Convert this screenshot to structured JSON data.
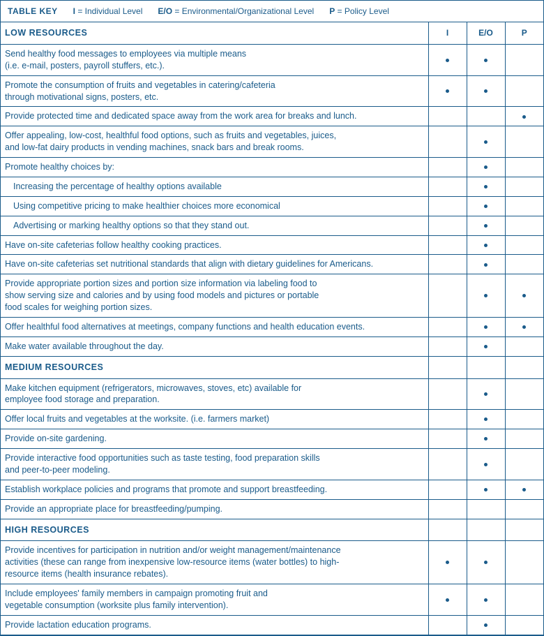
{
  "colors": {
    "text": "#1a5b8a",
    "border": "#1a5b8a",
    "bg": "#ffffff"
  },
  "tableKey": {
    "label": "TABLE KEY",
    "i": {
      "abbr": "I",
      "text": "= Individual Level"
    },
    "eo": {
      "abbr": "E/O",
      "text": "= Environmental/Organizational Level"
    },
    "p": {
      "abbr": "P",
      "text": "= Policy Level"
    }
  },
  "columns": {
    "i": "I",
    "eo": "E/O",
    "p": "P"
  },
  "sections": {
    "low": "LOW RESOURCES",
    "medium": "MEDIUM RESOURCES",
    "high": "HIGH RESOURCES"
  },
  "rows": {
    "low": [
      {
        "text": "Send healthy food messages to employees via multiple means\n(i.e. e-mail, posters, payroll stuffers, etc.).",
        "i": true,
        "eo": true,
        "p": false
      },
      {
        "text": "Promote the consumption of fruits and vegetables in catering/cafeteria\nthrough motivational signs, posters, etc.",
        "i": true,
        "eo": true,
        "p": false
      },
      {
        "text": "Provide protected time and dedicated space away from the work area for breaks and lunch.",
        "i": false,
        "eo": false,
        "p": true
      },
      {
        "text": "Offer appealing, low-cost, healthful food options, such as fruits and vegetables, juices,\nand low-fat dairy products in vending machines, snack bars and break rooms.",
        "i": false,
        "eo": true,
        "p": false
      },
      {
        "text": "Promote healthy choices by:",
        "i": false,
        "eo": true,
        "p": false
      },
      {
        "text": "Increasing the percentage of healthy options available",
        "i": false,
        "eo": true,
        "p": false,
        "indent": true
      },
      {
        "text": "Using competitive pricing to make healthier choices more economical",
        "i": false,
        "eo": true,
        "p": false,
        "indent": true
      },
      {
        "text": "Advertising or marking healthy options so that they stand out.",
        "i": false,
        "eo": true,
        "p": false,
        "indent": true
      },
      {
        "text": "Have on-site cafeterias follow healthy cooking practices.",
        "i": false,
        "eo": true,
        "p": false
      },
      {
        "text": "Have on-site cafeterias set nutritional standards that align with dietary guidelines for Americans.",
        "i": false,
        "eo": true,
        "p": false
      },
      {
        "text": "Provide appropriate portion sizes and portion size information via labeling food to\nshow serving size and calories and by using food models and pictures or portable\nfood scales for weighing portion sizes.",
        "i": false,
        "eo": true,
        "p": true
      },
      {
        "text": "Offer healthful food alternatives at meetings, company functions and health education events.",
        "i": false,
        "eo": true,
        "p": true
      },
      {
        "text": "Make water available throughout the day.",
        "i": false,
        "eo": true,
        "p": false
      }
    ],
    "medium": [
      {
        "text": "Make kitchen equipment (refrigerators, microwaves, stoves, etc) available for\nemployee food storage and preparation.",
        "i": false,
        "eo": true,
        "p": false
      },
      {
        "text": "Offer local fruits and vegetables at the worksite. (i.e. farmers market)",
        "i": false,
        "eo": true,
        "p": false
      },
      {
        "text": "Provide on-site gardening.",
        "i": false,
        "eo": true,
        "p": false
      },
      {
        "text": "Provide interactive food opportunities such as taste testing, food preparation skills\nand peer-to-peer modeling.",
        "i": false,
        "eo": true,
        "p": false
      },
      {
        "text": "Establish workplace policies and programs that promote and support breastfeeding.",
        "i": false,
        "eo": true,
        "p": true
      },
      {
        "text": "Provide an appropriate place for breastfeeding/pumping.",
        "i": false,
        "eo": false,
        "p": false
      }
    ],
    "high": [
      {
        "text": "Provide incentives for participation in nutrition and/or weight management/maintenance\nactivities (these can range from inexpensive low-resource items (water bottles) to high-\nresource items (health insurance rebates).",
        "i": true,
        "eo": true,
        "p": false
      },
      {
        "text": "Include employees' family members in campaign promoting fruit and\nvegetable consumption (worksite plus family intervention).",
        "i": true,
        "eo": true,
        "p": false
      },
      {
        "text": "Provide lactation education programs.",
        "i": false,
        "eo": true,
        "p": false
      }
    ]
  }
}
